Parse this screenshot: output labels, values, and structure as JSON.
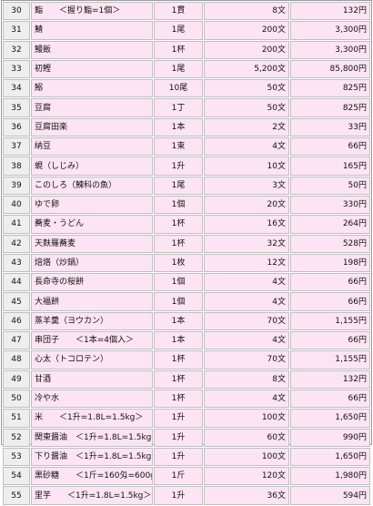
{
  "rows": [
    {
      "no": "30",
      "name": "鮨　　＜握り鮨=1個＞",
      "qty": "1貫",
      "price": "8文",
      "yen": "132円"
    },
    {
      "no": "31",
      "name": "鯖",
      "qty": "1尾",
      "price": "200文",
      "yen": "3,300円"
    },
    {
      "no": "32",
      "name": "鰻飯",
      "qty": "1杯",
      "price": "200文",
      "yen": "3,300円"
    },
    {
      "no": "33",
      "name": "初鰹",
      "qty": "1尾",
      "price": "5,200文",
      "yen": "85,800円"
    },
    {
      "no": "34",
      "name": "鰯",
      "qty": "10尾",
      "price": "50文",
      "yen": "825円"
    },
    {
      "no": "35",
      "name": "豆腐",
      "qty": "1丁",
      "price": "50文",
      "yen": "825円"
    },
    {
      "no": "36",
      "name": "豆腐田楽",
      "qty": "1本",
      "price": "2文",
      "yen": "33円"
    },
    {
      "no": "37",
      "name": "納豆",
      "qty": "1束",
      "price": "4文",
      "yen": "66円"
    },
    {
      "no": "38",
      "name": "蜆（しじみ）",
      "qty": "1升",
      "price": "10文",
      "yen": "165円"
    },
    {
      "no": "39",
      "name": "このしろ（鰊科の魚）",
      "qty": "1尾",
      "price": "3文",
      "yen": "50円"
    },
    {
      "no": "40",
      "name": "ゆで卵",
      "qty": "1個",
      "price": "20文",
      "yen": "330円"
    },
    {
      "no": "41",
      "name": "蕎麦・うどん",
      "qty": "1杯",
      "price": "16文",
      "yen": "264円"
    },
    {
      "no": "42",
      "name": "天麩羅蕎麦",
      "qty": "1杯",
      "price": "32文",
      "yen": "528円"
    },
    {
      "no": "43",
      "name": "焙烙（炒鍋）",
      "qty": "1枚",
      "price": "12文",
      "yen": "198円"
    },
    {
      "no": "44",
      "name": "長命寺の桜餅",
      "qty": "1個",
      "price": "4文",
      "yen": "66円"
    },
    {
      "no": "45",
      "name": "大福餅",
      "qty": "1個",
      "price": "4文",
      "yen": "66円"
    },
    {
      "no": "46",
      "name": "蒸羊羹（ヨウカン）",
      "qty": "1本",
      "price": "70文",
      "yen": "1,155円"
    },
    {
      "no": "47",
      "name": "串団子　　＜1本=4個入＞",
      "qty": "1本",
      "price": "4文",
      "yen": "66円"
    },
    {
      "no": "48",
      "name": "心太（トコロテン）",
      "qty": "1杯",
      "price": "70文",
      "yen": "1,155円"
    },
    {
      "no": "49",
      "name": "甘酒",
      "qty": "1杯",
      "price": "8文",
      "yen": "132円"
    },
    {
      "no": "50",
      "name": "冷や水",
      "qty": "1杯",
      "price": "4文",
      "yen": "66円"
    },
    {
      "no": "51",
      "name": "米　　＜1升=1.8L=1.5kg＞",
      "qty": "1升",
      "price": "100文",
      "yen": "1,650円"
    },
    {
      "no": "52",
      "name": "関東醤油　＜1升=1.8L=1.5kg＞",
      "qty": "1升",
      "price": "60文",
      "yen": "990円"
    },
    {
      "no": "53",
      "name": "下り醤油　＜1升=1.8L=1.5kg＞",
      "qty": "1升",
      "price": "100文",
      "yen": "1,650円"
    },
    {
      "no": "54",
      "name": "黒砂糖　　＜1斤=160匁=600g＞",
      "qty": "1斤",
      "price": "120文",
      "yen": "1,980円"
    },
    {
      "no": "55",
      "name": "里芋　　＜1升=1.8L=1.5kg＞",
      "qty": "1升",
      "price": "36文",
      "yen": "594円"
    }
  ]
}
